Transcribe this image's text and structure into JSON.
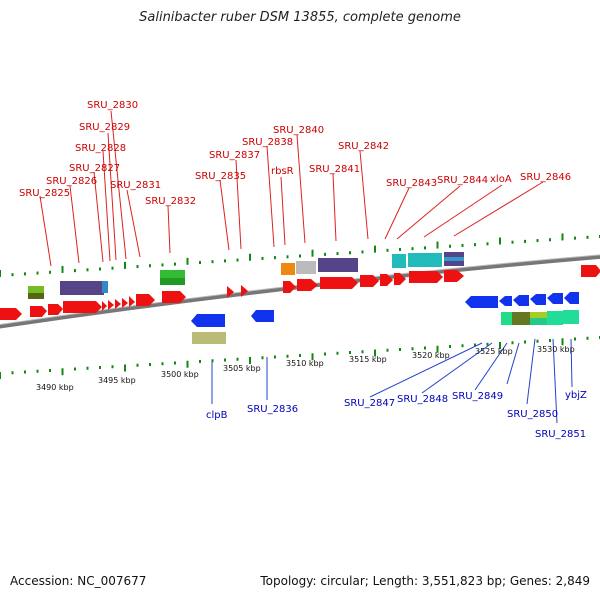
{
  "title": "Salinibacter ruber DSM 13855, complete genome",
  "accession": "Accession: NC_007677",
  "topology": "Topology: circular; Length: 3,551,823 bp; Genes: 2,849",
  "colors": {
    "forward_label": "#cc0000",
    "reverse_label": "#0000bb",
    "forward_gene": "#ee1111",
    "reverse_gene": "#1133ee",
    "backbone": "#777777",
    "tick": "#118811"
  },
  "kbp_ticks": [
    "3490 kbp",
    "3495 kbp",
    "3500 kbp",
    "3505 kbp",
    "3510 kbp",
    "3515 kbp",
    "3520 kbp",
    "3525 kbp",
    "3530 kbp"
  ],
  "forward_labels": [
    "SRU_2825",
    "SRU_2826",
    "SRU_2827",
    "SRU_2828",
    "SRU_2829",
    "SRU_2830",
    "SRU_2831",
    "SRU_2832",
    "SRU_2835",
    "SRU_2837",
    "SRU_2838",
    "rbsR",
    "SRU_2840",
    "SRU_2841",
    "SRU_2842",
    "SRU_2843",
    "SRU_2844",
    "xloA",
    "SRU_2846"
  ],
  "reverse_labels": [
    "clpB",
    "SRU_2836",
    "SRU_2847",
    "SRU_2848",
    "SRU_2849",
    "SRU_2850",
    "SRU_2851",
    "ybjZ"
  ]
}
